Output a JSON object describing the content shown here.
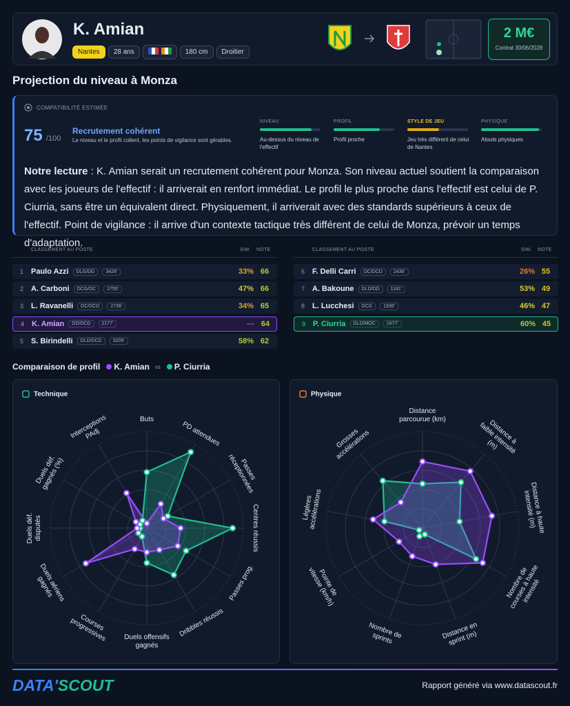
{
  "header": {
    "name": "K. Amian",
    "club": "Nantes",
    "age": "28 ans",
    "height": "180 cm",
    "foot": "Droitier",
    "value": "2 M€",
    "contract": "Contrat 30/06/2028"
  },
  "section_title": "Projection du niveau à Monza",
  "compatibility": {
    "label": "COMPATIBILITÉ ESTIMÉE",
    "score": 75,
    "max": "/100",
    "verdict": "Recrutement cohérent",
    "summary": "Le niveau et le profil collent, les points de vigilance sont gérables.",
    "criteria": [
      {
        "label": "NIVEAU",
        "level": 85,
        "color": "#1fbf8f",
        "text": "Au-dessus du niveau de l'effectif"
      },
      {
        "label": "PROFIL",
        "level": 76,
        "color": "#1fbf8f",
        "text": "Profil proche"
      },
      {
        "label": "STYLE DE JEU",
        "level": 52,
        "color": "#e6a817",
        "text": "Jeu très différent de celui de Nantes"
      },
      {
        "label": "PHYSIQUE",
        "level": 95,
        "color": "#1fbf8f",
        "text": "Atouts physiques"
      }
    ]
  },
  "reading": {
    "lead": "Notre lecture",
    "text": " : K. Amian serait un recrutement cohérent pour Monza. Son niveau actuel soutient la comparaison avec les joueurs de l'effectif : il arriverait en renfort immédiat. Le profil le plus proche dans l'effectif est celui de P. Ciurria, sans être un équivalent direct. Physiquement, il arriverait avec des standards supérieurs à ceux de l'effectif. Point de vigilance : il arrive d'un contexte tactique très différent de celui de Monza, prévoir un temps d'adaptation."
  },
  "rankings": {
    "label": "CLASSEMENT AU POSTE",
    "sim": "SIM.",
    "note": "NOTE",
    "left": [
      {
        "rank": 1,
        "name": "Paulo Azzi",
        "position": "DLG/DG",
        "minutes": "3426'",
        "sim": "33%",
        "note": 66
      },
      {
        "rank": 2,
        "name": "A. Carboni",
        "position": "DCG/DC",
        "minutes": "2755'",
        "sim": "47%",
        "note": 66
      },
      {
        "rank": 3,
        "name": "L. Ravanelli",
        "position": "DC/DCD",
        "minutes": "2736'",
        "sim": "34%",
        "note": 65
      },
      {
        "rank": 4,
        "name": "K. Amian",
        "position": "DD/DCD",
        "minutes": "2177'",
        "sim": "—",
        "note": 64
      },
      {
        "rank": 5,
        "name": "S. Birindelli",
        "position": "DLD/DCD",
        "minutes": "3209'",
        "sim": "58%",
        "note": 62
      }
    ],
    "right": [
      {
        "rank": 6,
        "name": "F. Delli Carri",
        "position": "DC/DCD",
        "minutes": "2436'",
        "sim": "26%",
        "note": 55
      },
      {
        "rank": 7,
        "name": "A. Bakoune",
        "position": "DLD/DD",
        "minutes": "1181'",
        "sim": "53%",
        "note": 49
      },
      {
        "rank": 8,
        "name": "L. Lucchesi",
        "position": "DCG",
        "minutes": "1936'",
        "sim": "46%",
        "note": 47
      },
      {
        "rank": 9,
        "name": "P. Ciurria",
        "position": "DLD/MOC",
        "minutes": "1677'",
        "sim": "60%",
        "note": 45
      }
    ]
  },
  "comparison": {
    "title": "Comparaison de profil",
    "vs": "vs"
  },
  "chart_data": [
    {
      "type": "radar",
      "title": "Technique",
      "rlim": [
        0,
        100
      ],
      "categories": [
        "Buts",
        "PD attendues",
        "Passes réceptionnées",
        "Centres réussis",
        "Passes prog.",
        "Dribbles réussis",
        "Duels offensifs gagnés",
        "Courses progressives",
        "Duels aériens gagnés",
        "Duels déf. disputés",
        "Duels déf. gagnés (%)",
        "Interceptions PAdj"
      ],
      "series": [
        {
          "name": "P. Ciurria",
          "color": "#1fbf8f",
          "values": [
            58,
            91,
            25,
            89,
            47,
            56,
            36,
            10,
            10,
            7,
            8,
            9
          ]
        },
        {
          "name": "K. Amian",
          "color": "#9b4dff",
          "values": [
            5,
            29,
            20,
            35,
            37,
            26,
            25,
            25,
            73,
            10,
            13,
            42
          ]
        }
      ]
    },
    {
      "type": "radar",
      "title": "Physique",
      "rlim": [
        0,
        100
      ],
      "categories": [
        "Distance parcourue (km)",
        "Distance à faible intensité (m)",
        "Distance à haute intensité (m)",
        "Nombre de courses à haute intensité",
        "Distance en sprint (m)",
        "Nombre de sprints",
        "Pointe de vitesse (km/h)",
        "Légères accélérations",
        "Grosses accélérations"
      ],
      "series": [
        {
          "name": "P. Ciurria",
          "color": "#1fbf8f",
          "values": [
            46,
            62,
            39,
            64,
            7,
            9,
            4,
            40,
            64
          ]
        },
        {
          "name": "K. Amian",
          "color": "#9b4dff",
          "values": [
            69,
            77,
            73,
            72,
            40,
            31,
            28,
            52,
            35
          ]
        }
      ]
    }
  ],
  "footer": {
    "brand_a": "DATA'",
    "brand_b": "SCOUT",
    "note": "Rapport généré via www.datascout.fr"
  }
}
